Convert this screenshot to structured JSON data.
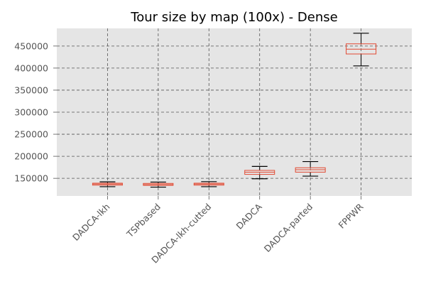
{
  "chart_data": {
    "type": "box",
    "title": "Tour size by map (100x) - Dense",
    "xlabel": "",
    "ylabel": "",
    "categories": [
      "DADCA-lkh",
      "TSPbased",
      "DADCA-lkh-cutted",
      "DADCA",
      "DADCA-parted",
      "FPPWR"
    ],
    "boxes": [
      {
        "category": "DADCA-lkh",
        "whisker_low": 131000,
        "q1": 134500,
        "median": 137000,
        "q3": 139000,
        "whisker_high": 142000
      },
      {
        "category": "TSPbased",
        "whisker_low": 130000,
        "q1": 134000,
        "median": 136000,
        "q3": 138500,
        "whisker_high": 141500
      },
      {
        "category": "DADCA-lkh-cutted",
        "whisker_low": 131000,
        "q1": 134500,
        "median": 137000,
        "q3": 139000,
        "whisker_high": 142500
      },
      {
        "category": "DADCA",
        "whisker_low": 149000,
        "q1": 159000,
        "median": 164000,
        "q3": 168000,
        "whisker_high": 177000
      },
      {
        "category": "DADCA-parted",
        "whisker_low": 155000,
        "q1": 164000,
        "median": 169500,
        "q3": 174000,
        "whisker_high": 188000
      },
      {
        "category": "FPPWR",
        "whisker_low": 405000,
        "q1": 432000,
        "median": 443000,
        "q3": 455000,
        "whisker_high": 479000
      }
    ],
    "yticks": [
      150000,
      200000,
      250000,
      300000,
      350000,
      400000,
      450000
    ],
    "ylim": [
      110000,
      490000
    ],
    "grid": true,
    "colors": {
      "background": "#e5e5e5",
      "grid": "#555555",
      "box": "#e24a33",
      "median": "#e24a33",
      "whisker": "#000000",
      "text": "#555555"
    }
  }
}
